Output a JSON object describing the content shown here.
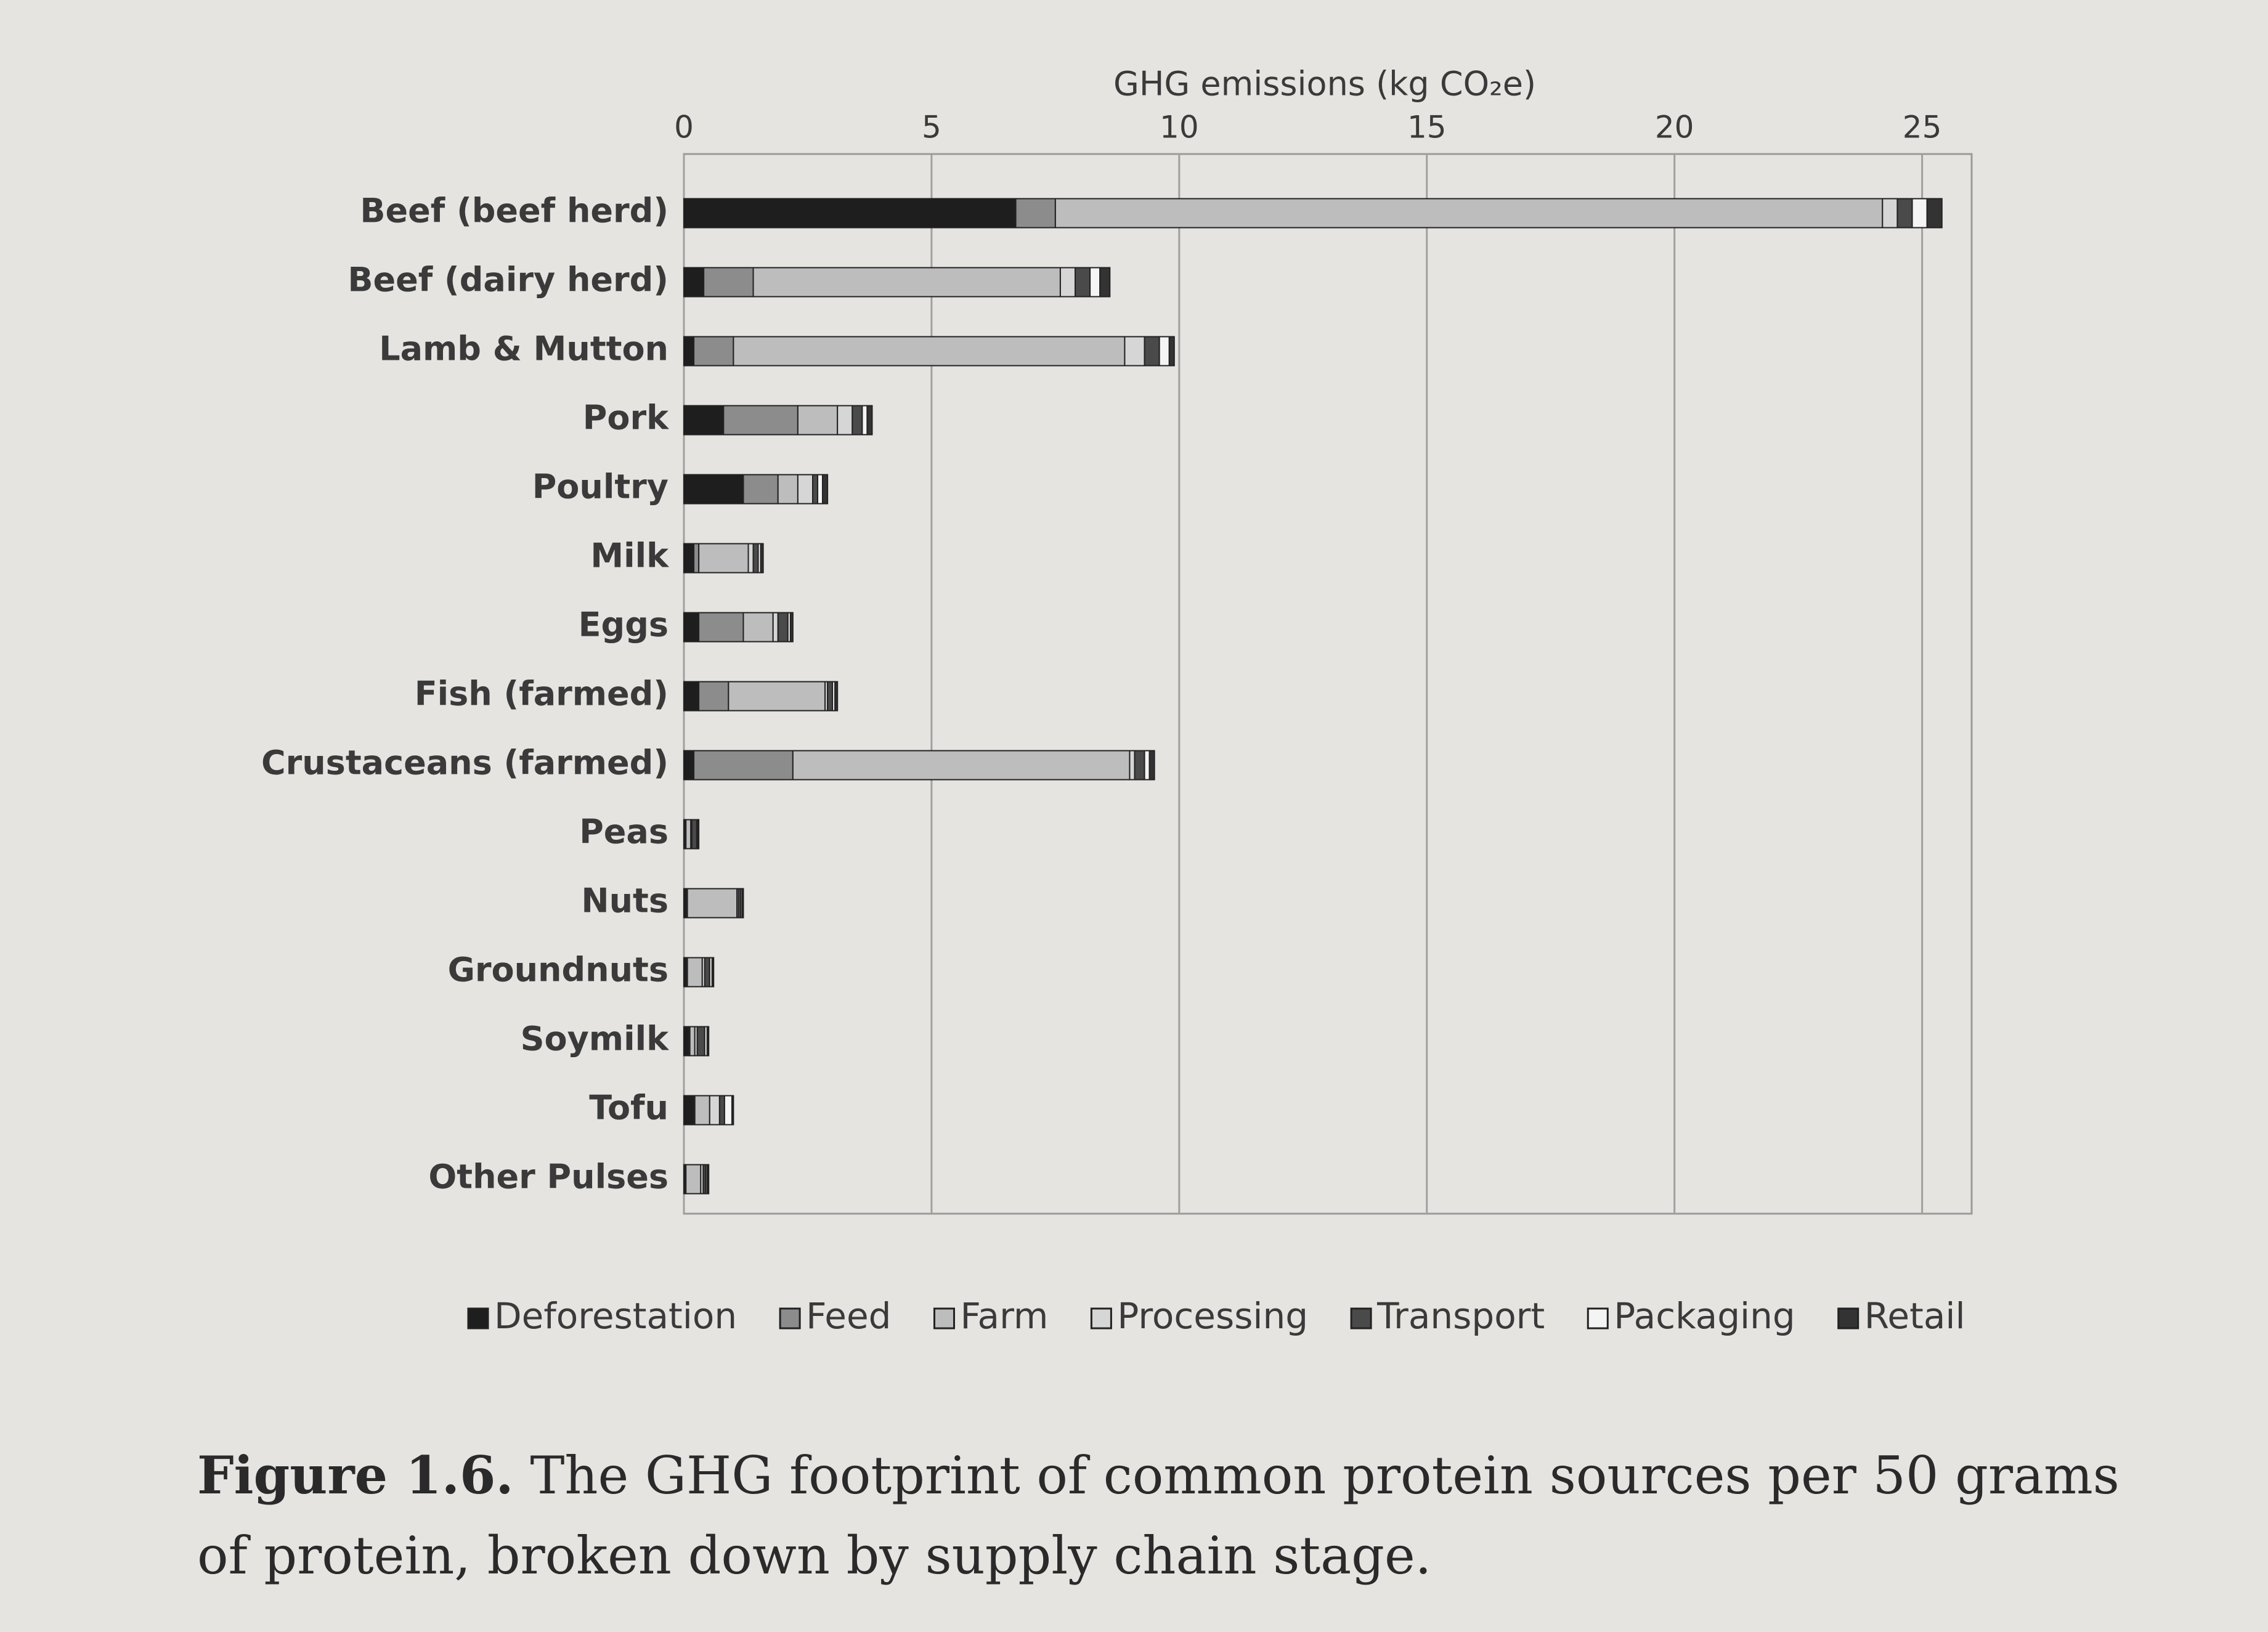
{
  "chart_data": {
    "type": "stacked-bar-horizontal",
    "x_label": "GHG emissions (kg CO₂e)",
    "categories": [
      "Beef (beef herd)",
      "Beef (dairy herd)",
      "Lamb & Mutton",
      "Pork",
      "Poultry",
      "Milk",
      "Eggs",
      "Fish (farmed)",
      "Crustaceans (farmed)",
      "Peas",
      "Nuts",
      "Groundnuts",
      "Soymilk",
      "Tofu",
      "Other Pulses"
    ],
    "series": [
      {
        "name": "Deforestation",
        "color": "#1e1e1e",
        "values": [
          6.7,
          0.4,
          0.2,
          0.8,
          1.2,
          0.2,
          0.3,
          0.3,
          0.2,
          0.02,
          0.05,
          0.05,
          0.1,
          0.2,
          0.02
        ]
      },
      {
        "name": "Feed",
        "color": "#8c8c8c",
        "values": [
          0.8,
          1.0,
          0.8,
          1.5,
          0.7,
          0.1,
          0.9,
          0.6,
          2.0,
          0.02,
          0.02,
          0.02,
          0.02,
          0.02,
          0.02
        ]
      },
      {
        "name": "Farm",
        "color": "#bdbdbd",
        "values": [
          16.7,
          6.2,
          7.9,
          0.8,
          0.4,
          1.0,
          0.6,
          1.95,
          6.8,
          0.1,
          1.0,
          0.3,
          0.1,
          0.3,
          0.3
        ]
      },
      {
        "name": "Processing",
        "color": "#d6d6d6",
        "values": [
          0.3,
          0.3,
          0.4,
          0.3,
          0.3,
          0.1,
          0.1,
          0.05,
          0.1,
          0.02,
          0.03,
          0.05,
          0.05,
          0.2,
          0.05
        ]
      },
      {
        "name": "Transport",
        "color": "#4a4a4a",
        "values": [
          0.3,
          0.3,
          0.3,
          0.2,
          0.1,
          0.1,
          0.2,
          0.1,
          0.2,
          0.1,
          0.05,
          0.1,
          0.15,
          0.1,
          0.05
        ]
      },
      {
        "name": "Packaging",
        "color": "#f4f4f4",
        "values": [
          0.3,
          0.2,
          0.2,
          0.1,
          0.1,
          0.05,
          0.05,
          0.05,
          0.1,
          0.02,
          0.03,
          0.05,
          0.05,
          0.15,
          0.03
        ]
      },
      {
        "name": "Retail",
        "color": "#333333",
        "values": [
          0.3,
          0.2,
          0.1,
          0.1,
          0.1,
          0.05,
          0.05,
          0.05,
          0.1,
          0.02,
          0.02,
          0.03,
          0.03,
          0.03,
          0.03
        ]
      }
    ],
    "xlim": [
      0,
      26
    ],
    "xticks": [
      0,
      5,
      10,
      15,
      20,
      25
    ],
    "grid": true,
    "legend": "bottom",
    "caption_label": "Figure 1.6.",
    "caption": "The GHG footprint of common protein sources per 50 grams of protein, broken down by supply chain stage."
  }
}
